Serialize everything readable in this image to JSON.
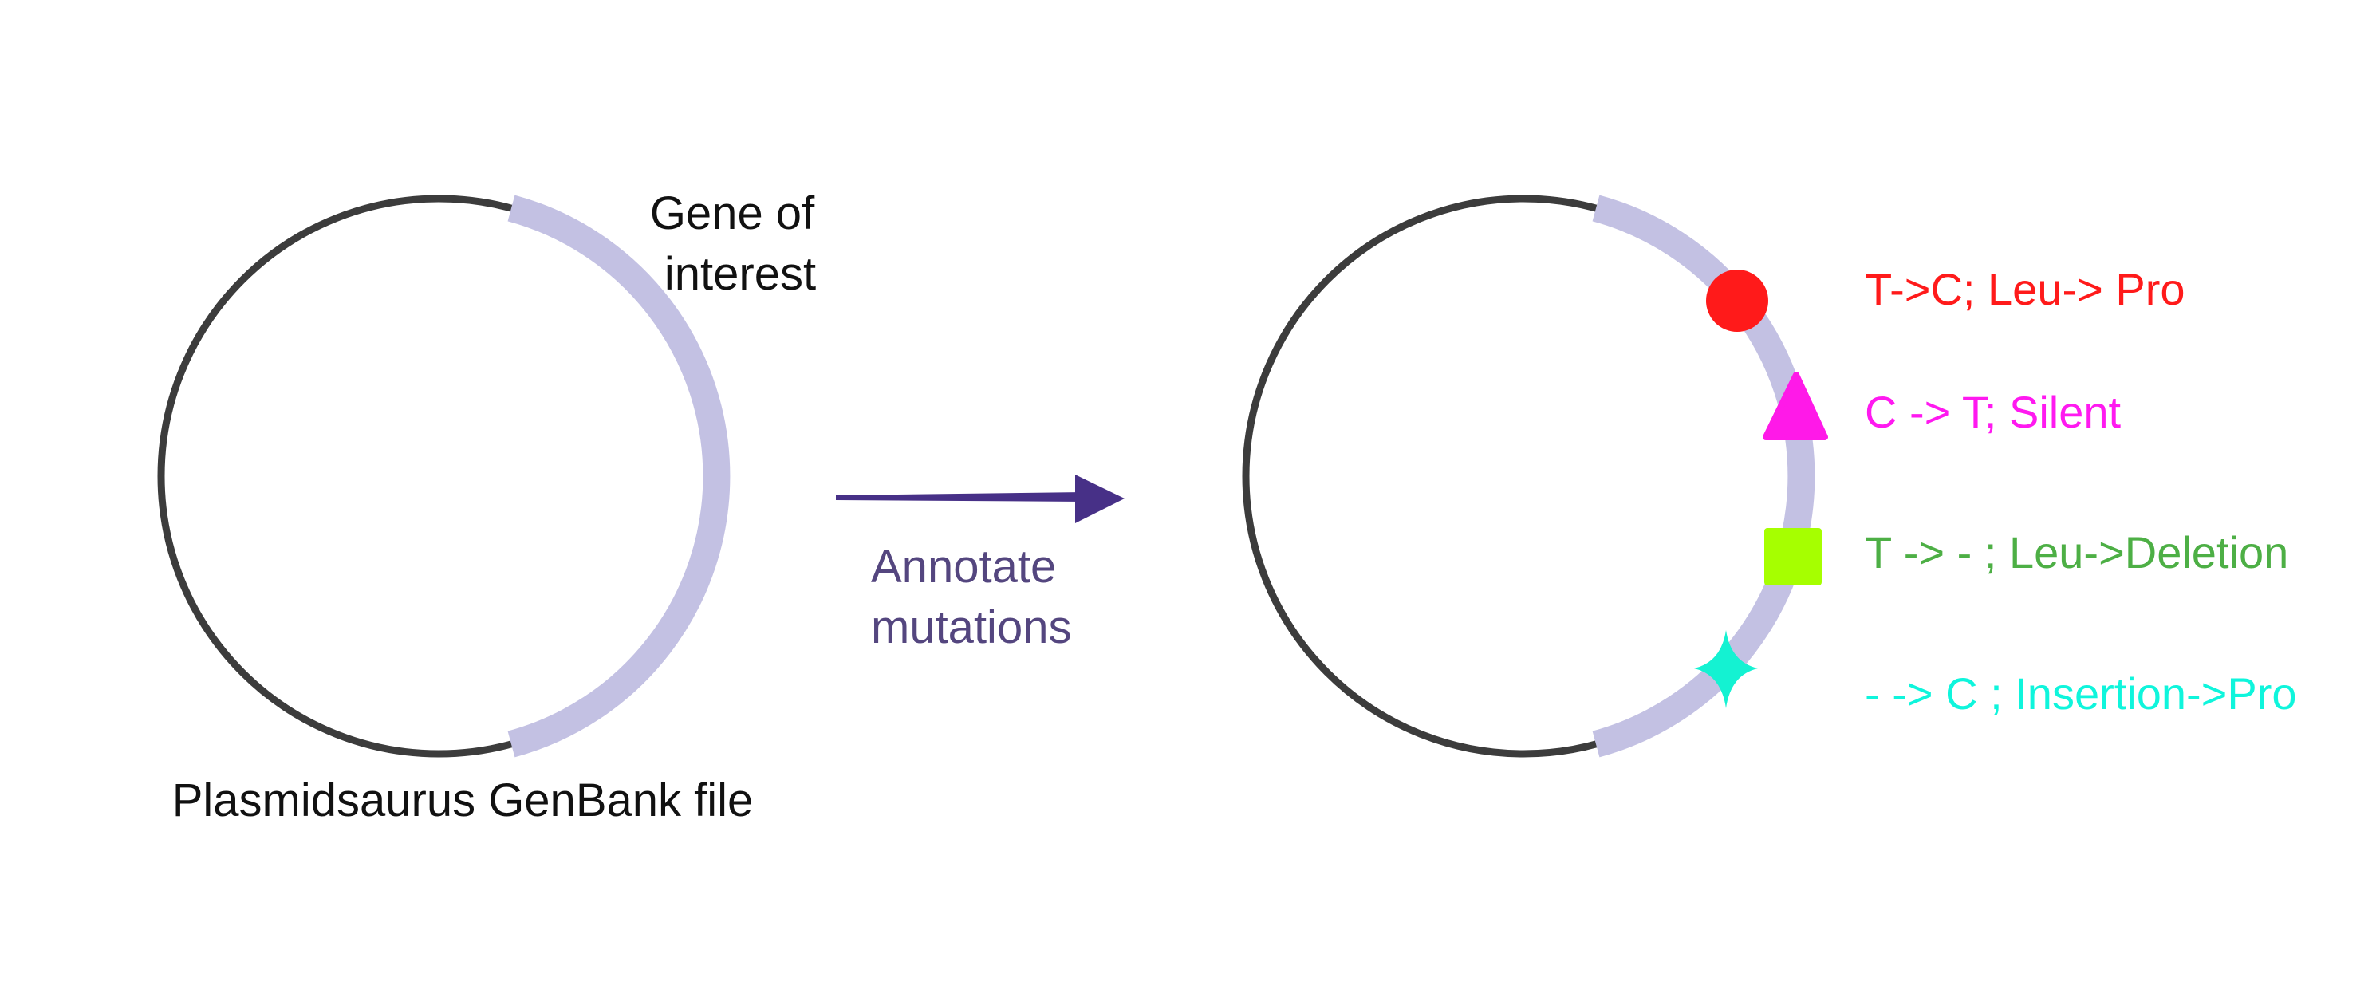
{
  "colors": {
    "plasmid_backbone": "#3c3c3c",
    "gene_segment": "#c3c1e3",
    "arrow": "#473087",
    "annotate_text": "#54467f",
    "label_text": "#111111"
  },
  "left_plasmid": {
    "gene_label_line1": "Gene of",
    "gene_label_line2": "interest",
    "caption": "Plasmidsaurus GenBank file"
  },
  "arrow": {
    "label_line1": "Annotate",
    "label_line2": "mutations"
  },
  "mutations": [
    {
      "label": "T->C; Leu-> Pro",
      "color": "#ff1a1a",
      "marker_color": "#ff1a1a",
      "marker": "circle-icon"
    },
    {
      "label": "C -> T; Silent",
      "color": "#ff19f0",
      "marker_color": "#ff19e8",
      "marker": "triangle-icon"
    },
    {
      "label": "T -> - ; Leu->Deletion",
      "color": "#4daf45",
      "marker_color": "#a6ff00",
      "marker": "square-icon"
    },
    {
      "label": "- -> C ; Insertion->Pro",
      "color": "#0ff5dc",
      "marker_color": "#14f2d2",
      "marker": "four-point-star-icon"
    }
  ]
}
